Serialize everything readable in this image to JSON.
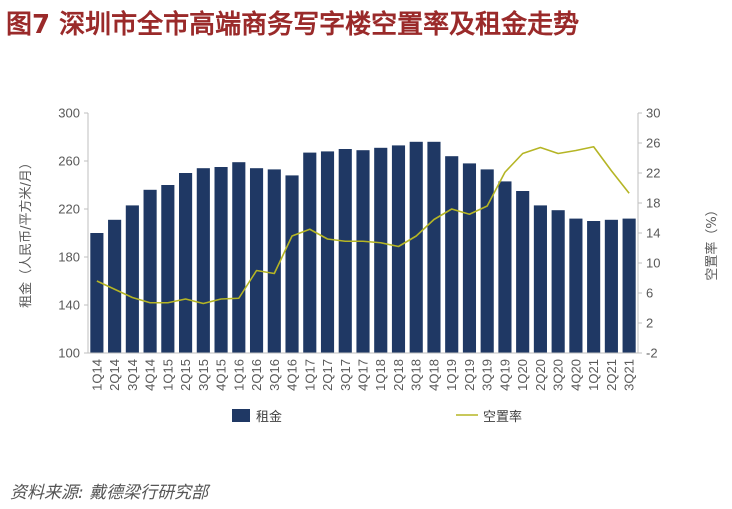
{
  "header": {
    "title": "图7 深圳市全市高端商务写字楼空置率及租金走势"
  },
  "footer": {
    "source": "资料来源: 戴德梁行研究部"
  },
  "chart_data": {
    "type": "bar",
    "categories": [
      "1Q14",
      "2Q14",
      "3Q14",
      "4Q14",
      "1Q15",
      "2Q15",
      "3Q15",
      "4Q15",
      "1Q16",
      "2Q16",
      "3Q16",
      "4Q16",
      "1Q17",
      "2Q17",
      "3Q17",
      "4Q17",
      "1Q18",
      "2Q18",
      "3Q18",
      "4Q18",
      "1Q19",
      "2Q19",
      "3Q19",
      "4Q19",
      "1Q20",
      "2Q20",
      "3Q20",
      "4Q20",
      "1Q21",
      "2Q21",
      "3Q21"
    ],
    "ylabel": "租金（人民币/平方米/月）",
    "ylim": [
      100,
      300
    ],
    "yticks": [
      100,
      140,
      180,
      220,
      260,
      300
    ],
    "y2label": "空置率（%）",
    "y2lim": [
      -2,
      30
    ],
    "y2ticks": [
      -2,
      2,
      6,
      10,
      14,
      18,
      22,
      26,
      30
    ],
    "grid": false,
    "legend_position": "bottom",
    "series": [
      {
        "name": "租金",
        "type": "bar",
        "axis": "left",
        "color": "#1f3864",
        "values": [
          200,
          211,
          223,
          236,
          240,
          250,
          254,
          255,
          259,
          254,
          253,
          248,
          267,
          268,
          270,
          269,
          271,
          273,
          276,
          276,
          264,
          258,
          253,
          243,
          235,
          223,
          219,
          212,
          210,
          211,
          212
        ]
      },
      {
        "name": "空置率",
        "type": "line",
        "axis": "right",
        "color": "#b5b525",
        "values": [
          7.6,
          6.5,
          5.4,
          4.7,
          4.7,
          5.2,
          4.6,
          5.2,
          5.3,
          9.0,
          8.6,
          13.6,
          14.5,
          13.2,
          12.9,
          12.9,
          12.7,
          12.2,
          13.6,
          15.8,
          17.2,
          16.5,
          17.6,
          22.1,
          24.6,
          25.4,
          24.6,
          25.0,
          25.5,
          22.3,
          19.3
        ]
      }
    ]
  }
}
